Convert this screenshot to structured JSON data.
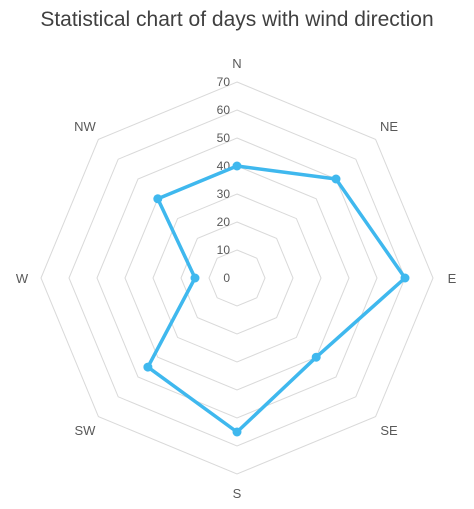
{
  "chart_data": {
    "type": "radar",
    "title": "Statistical chart of days with wind direction",
    "categories": [
      "N",
      "NE",
      "E",
      "SE",
      "S",
      "SW",
      "W",
      "NW"
    ],
    "series": [
      {
        "values": [
          40,
          50,
          60,
          40,
          55,
          45,
          15,
          40
        ]
      }
    ],
    "rlim": [
      0,
      70
    ],
    "ticks": [
      0,
      10,
      20,
      30,
      40,
      50,
      60,
      70
    ],
    "colors": {
      "series": "#3fb8ee",
      "grid": "#d9d9d9",
      "text": "#595959"
    },
    "grid": true,
    "legend": "none"
  }
}
